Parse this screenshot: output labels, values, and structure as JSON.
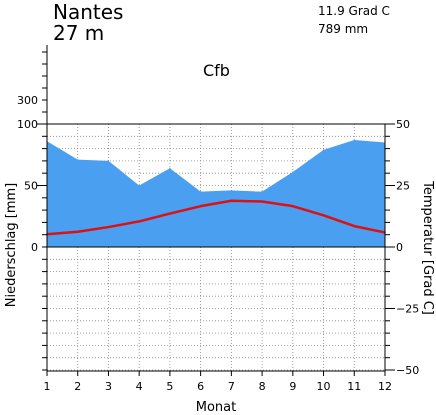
{
  "header": {
    "station": "Nantes",
    "elevation": "27 m",
    "mean_temp": "11.9 Grad C",
    "annual_precip": "789 mm",
    "climate_class": "Cfb"
  },
  "colors": {
    "precip_fill": "#4a9ff0",
    "temp_line": "#dd1111",
    "grid": "#888888",
    "axis": "#000000"
  },
  "chart_data": {
    "type": "area",
    "title": "",
    "xlabel": "Monat",
    "ylabel_left": "Niederschlag [mm]",
    "ylabel_right": "Temperatur [Grad C]",
    "x": [
      1,
      2,
      3,
      4,
      5,
      6,
      7,
      8,
      9,
      10,
      11,
      12
    ],
    "x_tick_labels": [
      "1",
      "2",
      "3",
      "4",
      "5",
      "6",
      "7",
      "8",
      "9",
      "10",
      "11",
      "12"
    ],
    "left_axis": {
      "range": [
        -100,
        300
      ],
      "tick_labels": [
        "0",
        "50",
        "100",
        "300"
      ]
    },
    "right_axis": {
      "range": [
        -50,
        50
      ],
      "tick_labels": [
        "50",
        "25",
        "0",
        "−25",
        "−50"
      ]
    },
    "grid": true,
    "series": [
      {
        "kind": "precipitation",
        "unit": "mm",
        "axis": "left",
        "values": [
          86,
          71,
          70,
          50,
          64,
          45,
          46,
          45,
          61,
          79,
          87,
          85
        ]
      },
      {
        "kind": "temperature",
        "unit": "Grad C",
        "axis": "right",
        "values": [
          5.2,
          6.2,
          8.1,
          10.4,
          13.6,
          16.6,
          18.8,
          18.5,
          16.6,
          12.9,
          8.5,
          5.9
        ]
      }
    ]
  }
}
